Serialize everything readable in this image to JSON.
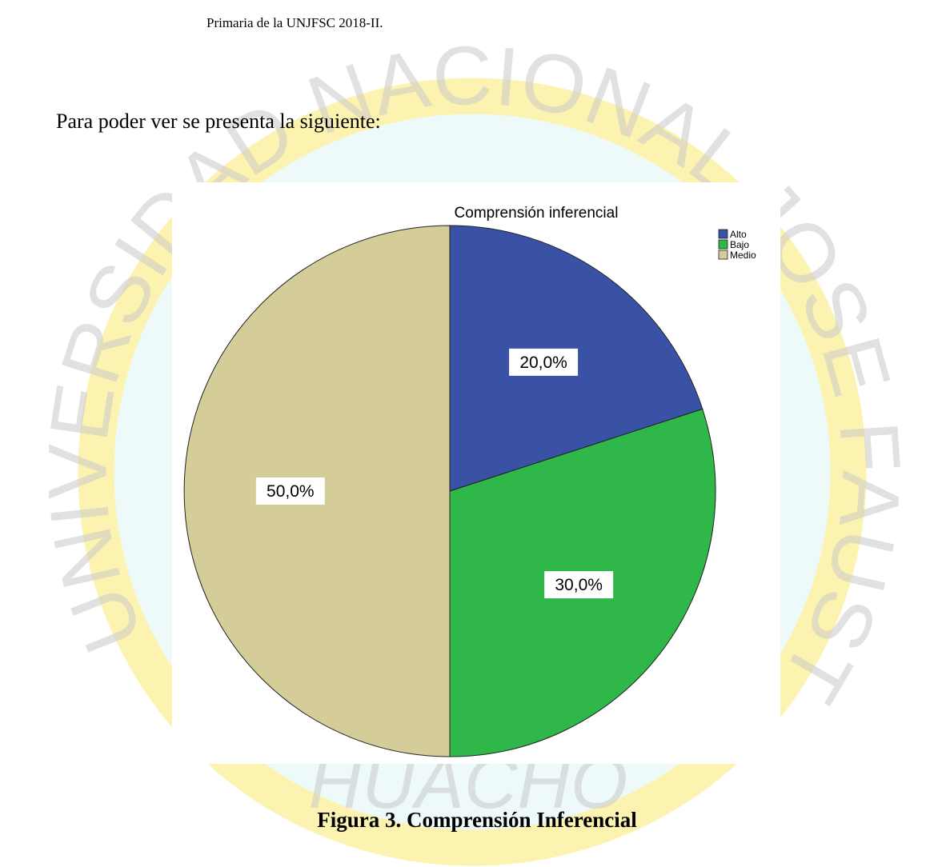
{
  "header": {
    "text": "Primaria de la UNJFSC  2018-II."
  },
  "paragraph": {
    "text": "Para poder ver se presenta la siguiente:"
  },
  "watermark": {
    "arc": "UNIVERSIDAD NACIONAL JOSE FAUSTINO SANCHEZ CARR",
    "bottom": "HUACHO"
  },
  "chart_data": {
    "type": "pie",
    "title": "Comprensión inferencial",
    "categories": [
      "Alto",
      "Bajo",
      "Medio"
    ],
    "values": [
      20,
      30,
      50
    ],
    "value_labels": [
      "20,0%",
      "30,0%",
      "50,0%"
    ],
    "colors": [
      "#3a52a6",
      "#2fb74a",
      "#d4cd9a"
    ],
    "legend": "top-right"
  },
  "caption": {
    "text": "Figura 3. Comprensión Inferencial"
  }
}
